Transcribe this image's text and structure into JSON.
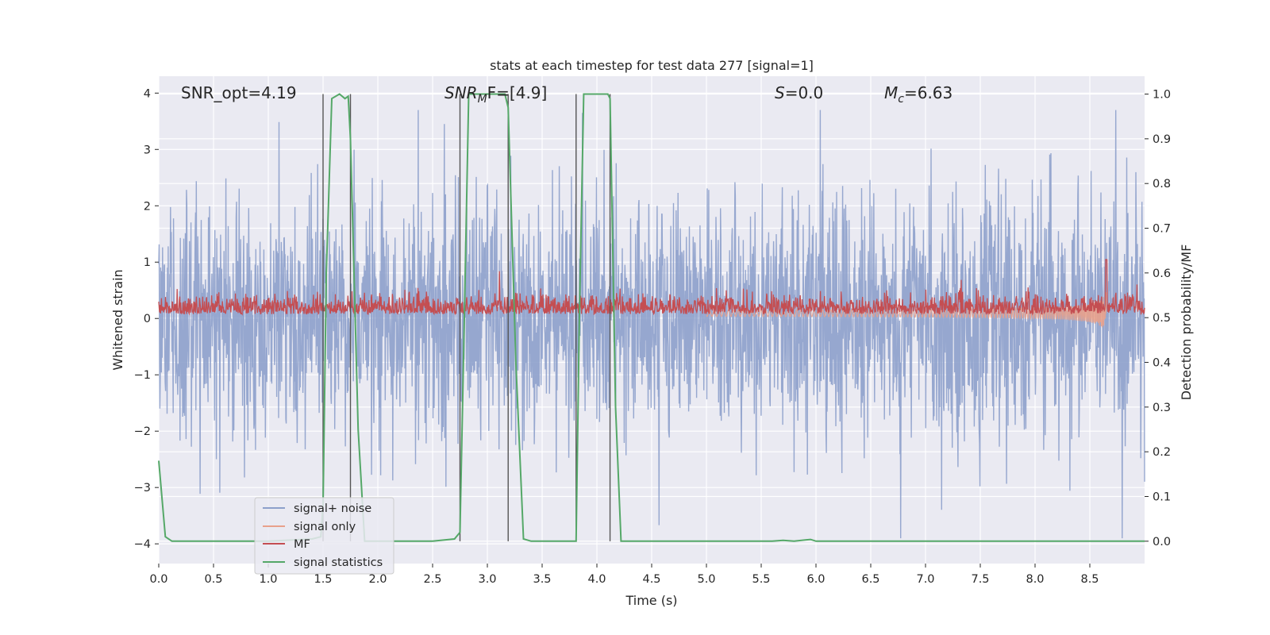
{
  "chart_data": {
    "type": "line",
    "title": "stats at each timestep for test data 277 [signal=1]",
    "xlabel": "Time (s)",
    "ylabel_left": "Whitened strain",
    "ylabel_right": "Detection probability/MF",
    "xlim": [
      0,
      9.0
    ],
    "ylim_left": [
      -4.35,
      4.3
    ],
    "ylim_right": [
      -0.05,
      1.04
    ],
    "x_ticks": [
      "0.0",
      "0.5",
      "1.0",
      "1.5",
      "2.0",
      "2.5",
      "3.0",
      "3.5",
      "4.0",
      "4.5",
      "5.0",
      "5.5",
      "6.0",
      "6.5",
      "7.0",
      "7.5",
      "8.0",
      "8.5"
    ],
    "y_ticks_left": [
      "4",
      "3",
      "2",
      "1",
      "0",
      "−1",
      "−2",
      "−3",
      "−4"
    ],
    "y_ticks_right": [
      "1.0",
      "0.9",
      "0.8",
      "0.7",
      "0.6",
      "0.5",
      "0.4",
      "0.3",
      "0.2",
      "0.1",
      "0.0"
    ],
    "grid": true,
    "legend_position": "lower-left",
    "annotations": [
      "SNR_opt=4.19",
      "SNR",
      "M",
      "F=[4.9]",
      "S",
      "=0.0",
      "M",
      "c",
      "=6.63"
    ],
    "vertical_lines_x": [
      1.5,
      1.75,
      2.75,
      3.19,
      3.81,
      4.12
    ],
    "series": [
      {
        "name": "signal+ noise",
        "color": "#8da0cb",
        "description_values": "whitened noisy strain, roughly within [-3.5, 3.5] over t=0..9 s"
      },
      {
        "name": "signal only",
        "color": "#e8a18b",
        "chirp_end_x": 8.65,
        "chirp_peak_amplitude": 0.52
      },
      {
        "name": "MF",
        "color": "#c44e52",
        "baseline": 0.52,
        "peak_x": 8.65,
        "peak_value": 0.63
      },
      {
        "name": "signal statistics",
        "color": "#55a868",
        "axis": "right",
        "x": [
          0.0,
          0.06,
          0.12,
          0.2,
          0.5,
          1.0,
          1.4,
          1.48,
          1.5,
          1.53,
          1.58,
          1.65,
          1.7,
          1.73,
          1.75,
          1.82,
          1.88,
          1.95,
          2.5,
          2.7,
          2.75,
          2.79,
          2.83,
          3.1,
          3.16,
          3.19,
          3.26,
          3.33,
          3.4,
          3.81,
          3.84,
          3.88,
          4.1,
          4.12,
          4.17,
          4.22,
          5.0,
          5.6,
          5.7,
          5.8,
          5.95,
          6.0,
          7.0,
          9.0
        ],
        "y": [
          0.18,
          0.01,
          0.0,
          0.0,
          0.0,
          0.0,
          0.005,
          0.01,
          0.08,
          0.6,
          0.99,
          1.0,
          0.99,
          0.995,
          0.9,
          0.25,
          0.0,
          0.0,
          0.0,
          0.005,
          0.02,
          0.5,
          1.0,
          1.0,
          1.0,
          0.97,
          0.4,
          0.005,
          0.0,
          0.0,
          0.5,
          1.0,
          1.0,
          0.99,
          0.3,
          0.0,
          0.0,
          0.0,
          0.002,
          0.0,
          0.004,
          0.0,
          0.0,
          0.0
        ]
      }
    ]
  },
  "legend": {
    "items": [
      "signal+ noise",
      "signal only",
      "MF",
      "signal statistics"
    ]
  }
}
